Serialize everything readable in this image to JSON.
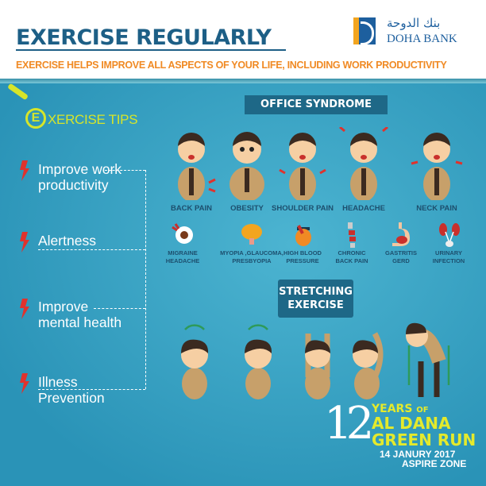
{
  "header": {
    "title": "EXERCISE REGULARLY",
    "subtitle": "EXERCISE HELPS IMPROVE ALL ASPECTS OF YOUR LIFE, INCLUDING WORK PRODUCTIVITY"
  },
  "logo": {
    "arabic": "بنك الدوحة",
    "english": "DOHA BANK"
  },
  "tips": {
    "letter": "E",
    "title": "XERCISE TIPS",
    "items": [
      {
        "line1": "Improve work",
        "line2": "productivity"
      },
      {
        "line1": "Alertness",
        "line2": ""
      },
      {
        "line1": "Improve",
        "line2": "mental health"
      },
      {
        "line1": "Illness",
        "line2": "Prevention"
      }
    ]
  },
  "office": {
    "title": "OFFICE SYNDROME",
    "conditions": [
      "BACK PAIN",
      "OBESITY",
      "SHOULDER PAIN",
      "HEADACHE",
      "NECK PAIN"
    ],
    "diseases": [
      {
        "line1": "MIGRAINE",
        "line2": "HEADACHE",
        "icon": "eye-icon"
      },
      {
        "line1": "MYOPIA ,GLAUCOMA,",
        "line2": "PRESBYOPIA",
        "icon": "brain-icon"
      },
      {
        "line1": "HIGH BLOOD",
        "line2": "PRESSURE",
        "icon": "heart-icon"
      },
      {
        "line1": "CHRONIC",
        "line2": "BACK PAIN",
        "icon": "spine-icon"
      },
      {
        "line1": "GASTRITIS",
        "line2": "GERD",
        "icon": "stomach-icon"
      },
      {
        "line1": "URINARY",
        "line2": "INFECTION",
        "icon": "kidney-icon"
      }
    ]
  },
  "stretching": {
    "line1": "STRETCHING",
    "line2": "EXERCISE"
  },
  "event": {
    "number": "12",
    "years": "YEARS",
    "of": "OF",
    "line2": "AL DANA",
    "line3": "GREEN RUN",
    "date": "14 JANURY 2017",
    "venue": "ASPIRE ZONE"
  },
  "colors": {
    "brand": "#1d5f86",
    "accent": "#f08a24",
    "lime": "#d6e52a",
    "background": "#2f9dc0"
  }
}
